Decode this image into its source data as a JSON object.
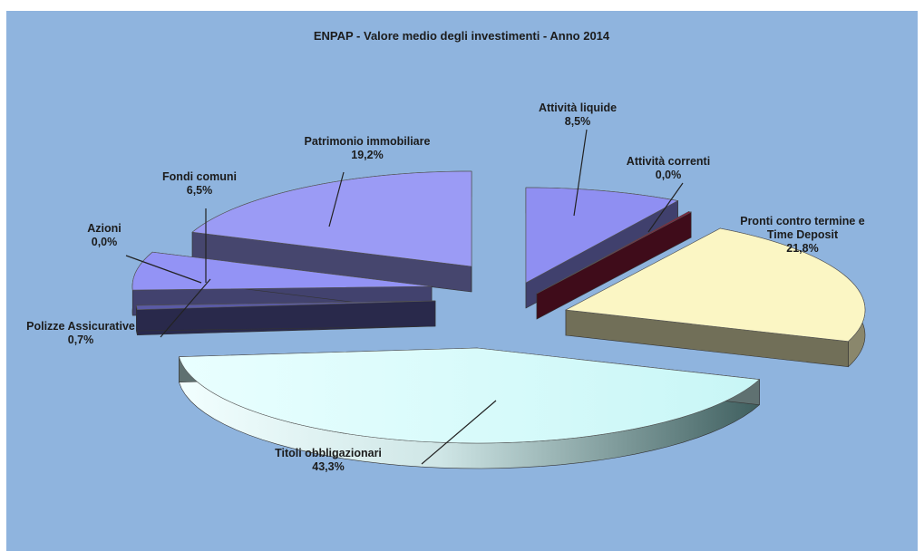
{
  "chart_data": {
    "type": "pie",
    "title": "ENPAP - Valore medio degli investimenti - Anno 2014",
    "slices": [
      {
        "label": "Attività liquide",
        "value": 8.5,
        "display": "8,5%",
        "color": "#8f8ff2"
      },
      {
        "label": "Attività correnti",
        "value": 0.0,
        "display": "0,0%",
        "color": "#8b1a3a"
      },
      {
        "label": "Pronti contro termine e Time Deposit",
        "display": "21,8%",
        "value": 21.8,
        "color": "#fbf6c4"
      },
      {
        "label": "Titoli obbligazionari",
        "value": 43.3,
        "display": "43,3%",
        "color": "#d4fbfb"
      },
      {
        "label": "Polizze Assicurative",
        "value": 0.7,
        "display": "0,7%",
        "color": "#5a5aa6"
      },
      {
        "label": "Azioni",
        "value": 0.0,
        "display": "0,0%",
        "color": "#ffffff"
      },
      {
        "label": "Fondi comuni",
        "value": 6.5,
        "display": "6,5%",
        "color": "#9393f5"
      },
      {
        "label": "Patrimonio immobiliare",
        "value": 19.2,
        "display": "19,2%",
        "color": "#9b9bf5"
      }
    ],
    "legend": "none"
  }
}
